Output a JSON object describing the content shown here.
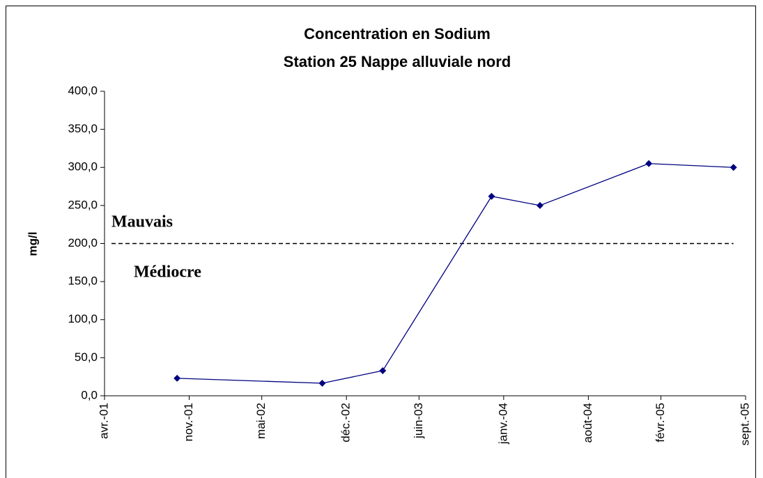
{
  "chart_data": {
    "type": "line",
    "title": "Concentration en Sodium",
    "subtitle": "Station 25 Nappe alluviale nord",
    "y_label": "mg/l",
    "x": [
      "2001-10",
      "2002-10",
      "2003-03",
      "2003-12",
      "2004-04",
      "2005-01",
      "2005-08"
    ],
    "series": [
      {
        "name": "Sodium",
        "color": "#000080",
        "values": [
          23,
          16.5,
          33,
          262,
          250,
          305,
          300
        ]
      }
    ],
    "xlim": [
      "2001-04",
      "2005-09"
    ],
    "xticks": [
      {
        "value": "2001-04",
        "label": "avr.-01"
      },
      {
        "value": "2001-11",
        "label": "nov.-01"
      },
      {
        "value": "2002-05",
        "label": "mai-02"
      },
      {
        "value": "2002-12",
        "label": "déc.-02"
      },
      {
        "value": "2003-06",
        "label": "juin-03"
      },
      {
        "value": "2004-01",
        "label": "janv.-04"
      },
      {
        "value": "2004-08",
        "label": "août-04"
      },
      {
        "value": "2005-02",
        "label": "févr.-05"
      },
      {
        "value": "2005-09",
        "label": "sept.-05"
      }
    ],
    "ylim": [
      0,
      400
    ],
    "yticks": [
      {
        "value": 0,
        "label": "0,0"
      },
      {
        "value": 50,
        "label": "50,0"
      },
      {
        "value": 100,
        "label": "100,0"
      },
      {
        "value": 150,
        "label": "150,0"
      },
      {
        "value": 200,
        "label": "200,0"
      },
      {
        "value": 250,
        "label": "250,0"
      },
      {
        "value": 300,
        "label": "300,0"
      },
      {
        "value": 350,
        "label": "350,0"
      },
      {
        "value": 400,
        "label": "400,0"
      }
    ],
    "reference_line": {
      "value": 200,
      "color": "#000000"
    },
    "annotations": [
      "Mauvais",
      "Médiocre"
    ]
  }
}
